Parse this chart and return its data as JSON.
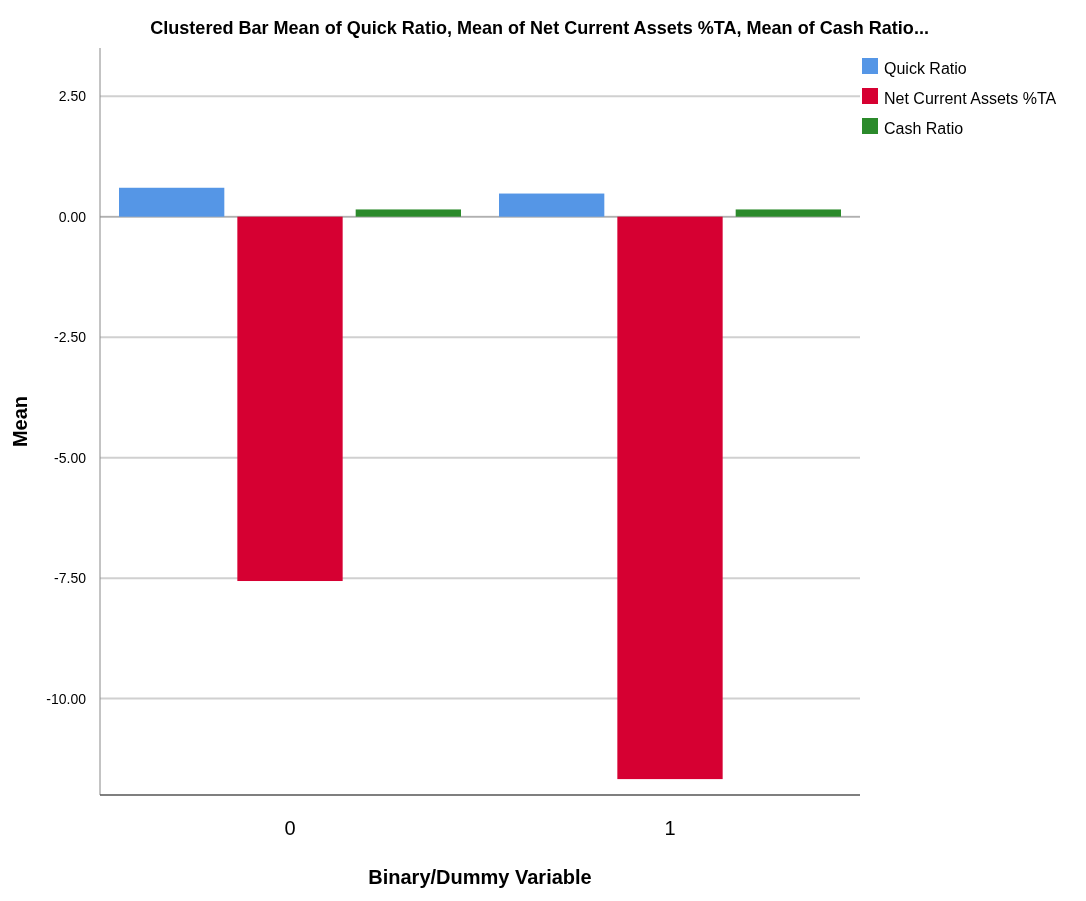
{
  "chart_data": {
    "type": "bar",
    "title": "Clustered Bar Mean of Quick Ratio, Mean of Net Current Assets %TA, Mean of Cash Ratio...",
    "xlabel": "Binary/Dummy Variable",
    "ylabel": "Mean",
    "categories": [
      "0",
      "1"
    ],
    "series": [
      {
        "name": "Quick Ratio",
        "color": "#5596e6",
        "values": [
          0.6,
          0.48
        ]
      },
      {
        "name": "Net Current Assets %TA",
        "color": "#d60032",
        "values": [
          -7.56,
          -11.67
        ]
      },
      {
        "name": "Cash Ratio",
        "color": "#2b8a2b",
        "values": [
          0.15,
          0.15
        ]
      }
    ],
    "ylim": [
      -12,
      3.5
    ],
    "yticks": [
      {
        "value": 2.5,
        "label": "2.50"
      },
      {
        "value": 0,
        "label": "0.00"
      },
      {
        "value": -2.5,
        "label": "-2.50"
      },
      {
        "value": -5,
        "label": "-5.00"
      },
      {
        "value": -7.5,
        "label": "-7.50"
      },
      {
        "value": -10,
        "label": "-10.00"
      }
    ],
    "grid": "y",
    "legend": "top right"
  }
}
